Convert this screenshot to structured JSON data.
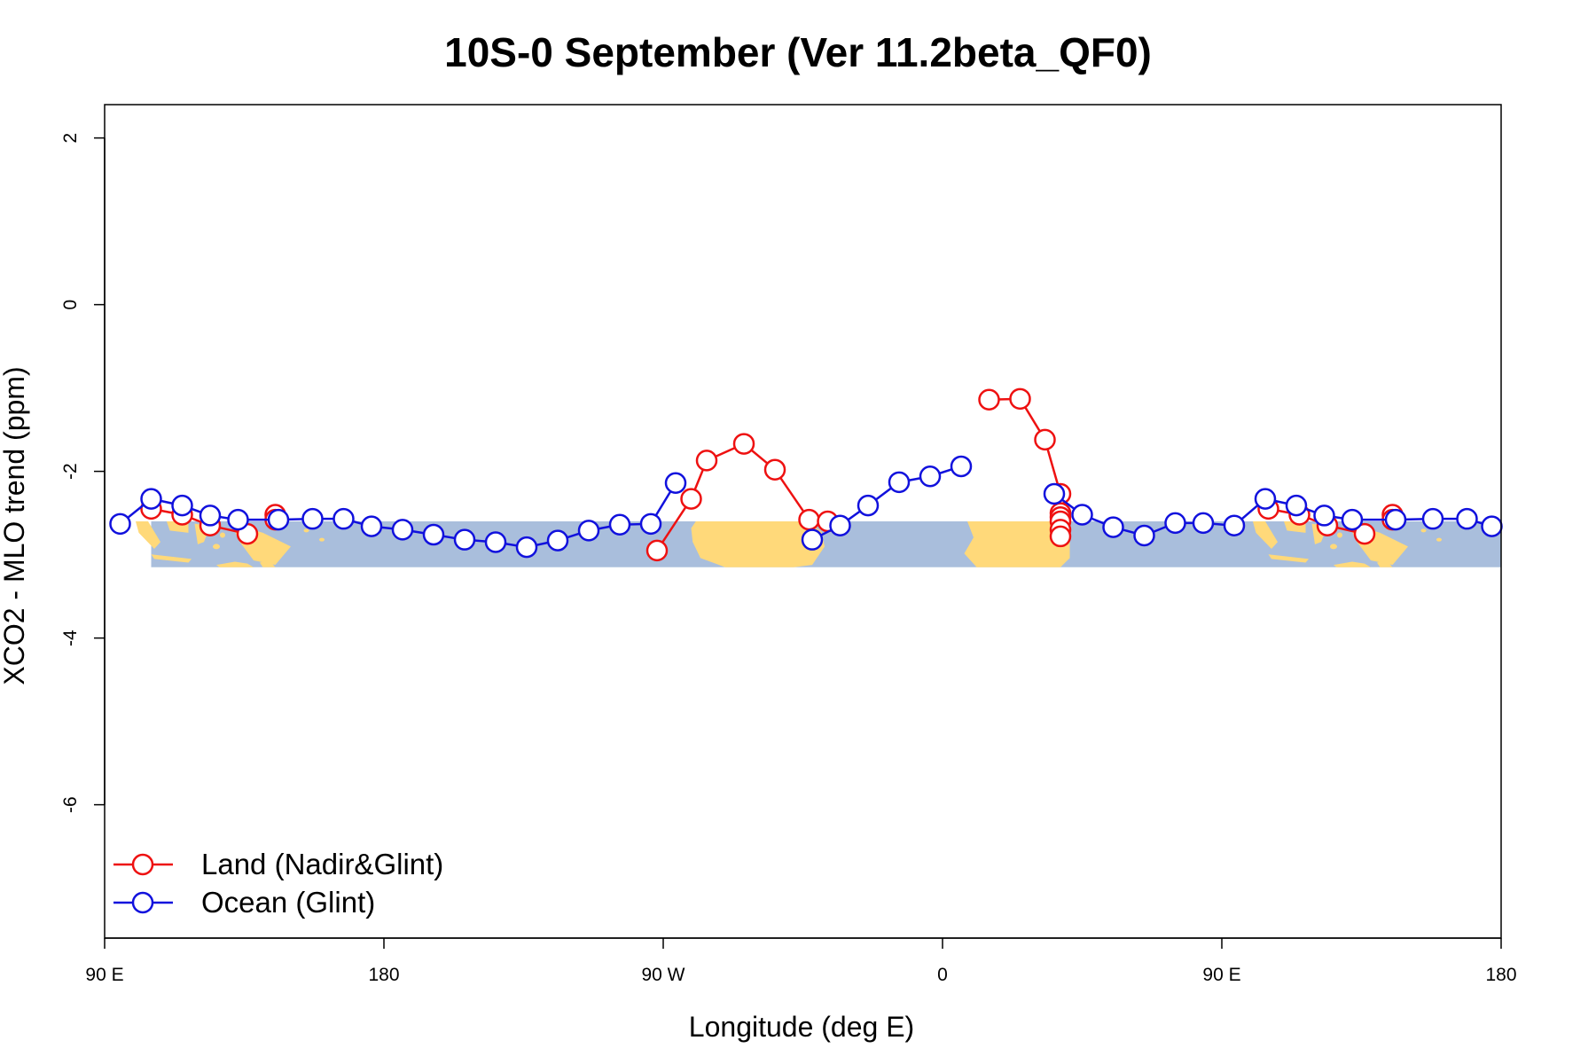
{
  "chart_data": {
    "type": "line",
    "title": "10S-0 September (Ver 11.2beta_QF0)",
    "xlabel": "Longitude (deg E)",
    "ylabel": "XCO2 - MLO trend (ppm)",
    "xlim": [
      90,
      540
    ],
    "ylim": [
      -7.6,
      2.4
    ],
    "x_ticks": [
      {
        "value": 90,
        "label": "90 E"
      },
      {
        "value": 180,
        "label": "180"
      },
      {
        "value": 270,
        "label": "90 W"
      },
      {
        "value": 360,
        "label": "0"
      },
      {
        "value": 450,
        "label": "90 E"
      },
      {
        "value": 540,
        "label": "180"
      }
    ],
    "y_ticks": [
      {
        "value": 2,
        "label": "2"
      },
      {
        "value": 0,
        "label": "0"
      },
      {
        "value": -2,
        "label": "-2"
      },
      {
        "value": -4,
        "label": "-4"
      },
      {
        "value": -6,
        "label": "-6"
      }
    ],
    "map_band": {
      "y_top": -2.6,
      "y_bottom": -3.15,
      "ocean_color": "#a9bedc",
      "land_color": "#ffd97a"
    },
    "legend": {
      "position": "bottom-left"
    },
    "grid": false,
    "series": [
      {
        "name": "Land (Nadir&Glint)",
        "color": "#ee1111",
        "segments": [
          [
            [
              105,
              -2.45
            ],
            [
              115,
              -2.52
            ],
            [
              124,
              -2.65
            ],
            [
              136,
              -2.75
            ]
          ],
          [
            [
              145,
              -2.52
            ],
            [
              145,
              -2.58
            ]
          ],
          [
            [
              268,
              -2.95
            ],
            [
              279,
              -2.33
            ],
            [
              284,
              -1.87
            ],
            [
              296,
              -1.67
            ],
            [
              306,
              -1.98
            ],
            [
              317,
              -2.58
            ],
            [
              323,
              -2.6
            ]
          ],
          [
            [
              375,
              -1.14
            ],
            [
              385,
              -1.13
            ],
            [
              393,
              -1.62
            ],
            [
              398,
              -2.27
            ],
            [
              398,
              -2.5
            ],
            [
              398,
              -2.55
            ],
            [
              398,
              -2.6
            ],
            [
              398,
              -2.7
            ],
            [
              398,
              -2.78
            ]
          ],
          [
            [
              465,
              -2.45
            ],
            [
              475,
              -2.52
            ],
            [
              484,
              -2.65
            ],
            [
              496,
              -2.75
            ]
          ],
          [
            [
              505,
              -2.52
            ],
            [
              505,
              -2.58
            ]
          ]
        ]
      },
      {
        "name": "Ocean (Glint)",
        "color": "#1111dd",
        "segments": [
          [
            [
              95,
              -2.63
            ],
            [
              105,
              -2.33
            ],
            [
              115,
              -2.41
            ],
            [
              124,
              -2.53
            ],
            [
              133,
              -2.58
            ],
            [
              146,
              -2.58
            ],
            [
              157,
              -2.57
            ],
            [
              167,
              -2.57
            ],
            [
              176,
              -2.66
            ],
            [
              186,
              -2.7
            ],
            [
              196,
              -2.76
            ],
            [
              206,
              -2.82
            ],
            [
              216,
              -2.85
            ],
            [
              226,
              -2.91
            ],
            [
              236,
              -2.83
            ],
            [
              246,
              -2.71
            ],
            [
              256,
              -2.64
            ],
            [
              266,
              -2.63
            ],
            [
              274,
              -2.14
            ]
          ],
          [
            [
              318,
              -2.82
            ],
            [
              327,
              -2.65
            ],
            [
              336,
              -2.41
            ],
            [
              346,
              -2.13
            ],
            [
              356,
              -2.06
            ],
            [
              366,
              -1.94
            ]
          ],
          [
            [
              396,
              -2.27
            ],
            [
              405,
              -2.52
            ],
            [
              415,
              -2.67
            ],
            [
              425,
              -2.77
            ],
            [
              435,
              -2.62
            ],
            [
              444,
              -2.62
            ],
            [
              454,
              -2.65
            ],
            [
              464,
              -2.33
            ],
            [
              474,
              -2.41
            ],
            [
              483,
              -2.53
            ],
            [
              492,
              -2.58
            ],
            [
              506,
              -2.58
            ],
            [
              518,
              -2.57
            ],
            [
              529,
              -2.57
            ],
            [
              537,
              -2.66
            ]
          ]
        ]
      }
    ]
  }
}
